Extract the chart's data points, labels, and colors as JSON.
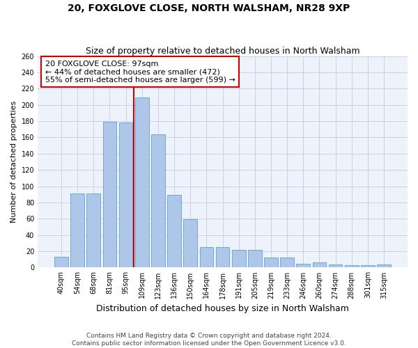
{
  "title1": "20, FOXGLOVE CLOSE, NORTH WALSHAM, NR28 9XP",
  "title2": "Size of property relative to detached houses in North Walsham",
  "xlabel": "Distribution of detached houses by size in North Walsham",
  "ylabel": "Number of detached properties",
  "bar_labels": [
    "40sqm",
    "54sqm",
    "68sqm",
    "81sqm",
    "95sqm",
    "109sqm",
    "123sqm",
    "136sqm",
    "150sqm",
    "164sqm",
    "178sqm",
    "191sqm",
    "205sqm",
    "219sqm",
    "233sqm",
    "246sqm",
    "260sqm",
    "274sqm",
    "288sqm",
    "301sqm",
    "315sqm"
  ],
  "bar_values": [
    13,
    91,
    91,
    179,
    178,
    209,
    164,
    89,
    59,
    25,
    25,
    22,
    22,
    12,
    12,
    5,
    6,
    4,
    3,
    3,
    4
  ],
  "bar_color": "#aec6e8",
  "bar_edge_color": "#6aaad4",
  "vline_position": 4.5,
  "vline_color": "#cc0000",
  "annotation_lines": [
    "20 FOXGLOVE CLOSE: 97sqm",
    "← 44% of detached houses are smaller (472)",
    "55% of semi-detached houses are larger (599) →"
  ],
  "ylim": [
    0,
    260
  ],
  "yticks": [
    0,
    20,
    40,
    60,
    80,
    100,
    120,
    140,
    160,
    180,
    200,
    220,
    240,
    260
  ],
  "footer1": "Contains HM Land Registry data © Crown copyright and database right 2024.",
  "footer2": "Contains public sector information licensed under the Open Government Licence v3.0.",
  "background_color": "#eef2fb",
  "grid_color": "#c8d0e8",
  "title1_fontsize": 10,
  "title2_fontsize": 9,
  "xlabel_fontsize": 9,
  "ylabel_fontsize": 8,
  "tick_fontsize": 7,
  "annotation_fontsize": 8,
  "footer_fontsize": 6.5
}
